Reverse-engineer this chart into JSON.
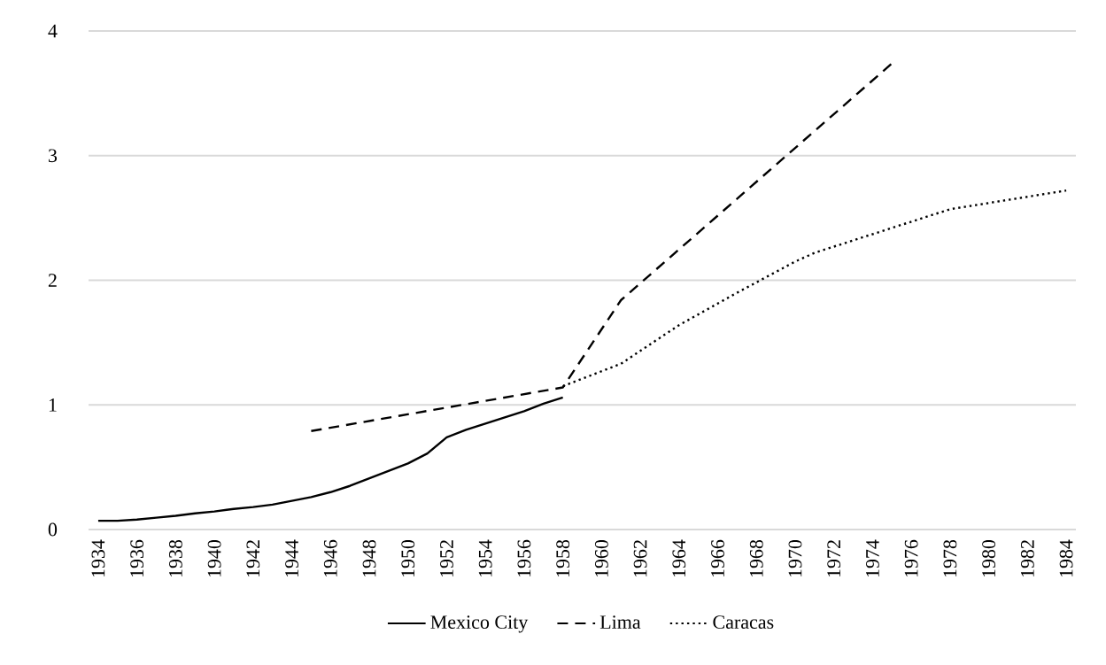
{
  "chart_data": {
    "type": "line",
    "xlim": [
      1933.5,
      1984.5
    ],
    "xticks": [
      1934,
      1936,
      1938,
      1940,
      1942,
      1944,
      1946,
      1948,
      1950,
      1952,
      1954,
      1956,
      1958,
      1960,
      1962,
      1964,
      1966,
      1968,
      1970,
      1972,
      1974,
      1976,
      1978,
      1980,
      1982,
      1984
    ],
    "ylim": [
      0,
      4
    ],
    "yticks": [
      0,
      1,
      2,
      3,
      4
    ],
    "grid": "y",
    "legend": "bottom",
    "series": [
      {
        "name": "Mexico City",
        "color": "#000000",
        "line_style": "solid",
        "x": [
          1934,
          1935,
          1936,
          1937,
          1938,
          1939,
          1940,
          1941,
          1942,
          1943,
          1944,
          1945,
          1946,
          1947,
          1948,
          1949,
          1950,
          1951,
          1952,
          1953,
          1954,
          1955,
          1956,
          1957,
          1958
        ],
        "values": [
          0.07,
          0.07,
          0.08,
          0.095,
          0.11,
          0.13,
          0.145,
          0.165,
          0.18,
          0.2,
          0.23,
          0.26,
          0.3,
          0.35,
          0.41,
          0.47,
          0.53,
          0.61,
          0.74,
          0.8,
          0.85,
          0.9,
          0.95,
          1.01,
          1.06
        ]
      },
      {
        "name": "Lima",
        "color": "#000000",
        "line_style": "dashed",
        "x": [
          1945,
          1958,
          1961,
          1975
        ],
        "values": [
          0.79,
          1.14,
          1.84,
          3.74
        ]
      },
      {
        "name": "Caracas",
        "color": "#000000",
        "line_style": "dotted",
        "x": [
          1958,
          1961,
          1964,
          1967,
          1970,
          1971,
          1975,
          1978,
          1984
        ],
        "values": [
          1.15,
          1.33,
          1.64,
          1.9,
          2.15,
          2.22,
          2.42,
          2.57,
          2.72
        ]
      }
    ]
  }
}
